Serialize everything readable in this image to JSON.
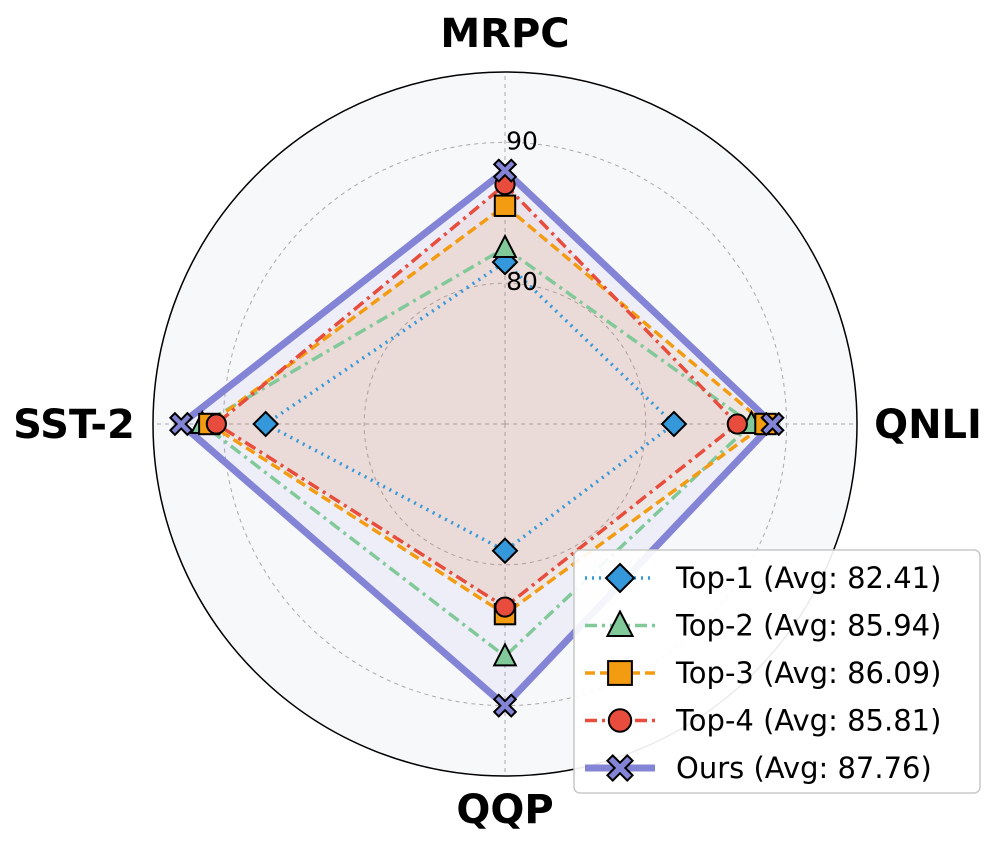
{
  "chart_data": {
    "type": "radar",
    "axes": [
      "MRPC",
      "QNLI",
      "QQP",
      "SST-2"
    ],
    "radial_ticks": [
      {
        "value": 80,
        "label": "80"
      },
      {
        "value": 90,
        "label": "90"
      }
    ],
    "rlim": [
      70,
      95
    ],
    "grid": true,
    "legend_position": "bottom-right",
    "series": [
      {
        "name": "Top-1 (Avg: 82.41)",
        "values": [
          81.5,
          82.0,
          79.0,
          87.0
        ],
        "color": "#3498db",
        "linestyle": "dotted",
        "marker": "diamond",
        "fill": false
      },
      {
        "name": "Top-2 (Avg: 85.94)",
        "values": [
          82.5,
          87.5,
          86.5,
          91.5
        ],
        "color": "#82c99a",
        "linestyle": "dashdot",
        "marker": "triangle",
        "fill": false
      },
      {
        "name": "Top-3 (Avg: 86.09)",
        "values": [
          85.5,
          88.5,
          83.5,
          91.0
        ],
        "color": "#f39c12",
        "linestyle": "dashed",
        "marker": "square",
        "fill": true
      },
      {
        "name": "Top-4 (Avg: 85.81)",
        "values": [
          87.0,
          86.5,
          83.0,
          90.5
        ],
        "color": "#e74c3c",
        "linestyle": "dashdot",
        "marker": "circle",
        "fill": true
      },
      {
        "name": "Ours (Avg: 87.76)",
        "values": [
          88.0,
          89.0,
          90.0,
          93.0
        ],
        "color": "#8484d6",
        "linestyle": "solid",
        "marker": "x",
        "fill": true
      }
    ]
  }
}
